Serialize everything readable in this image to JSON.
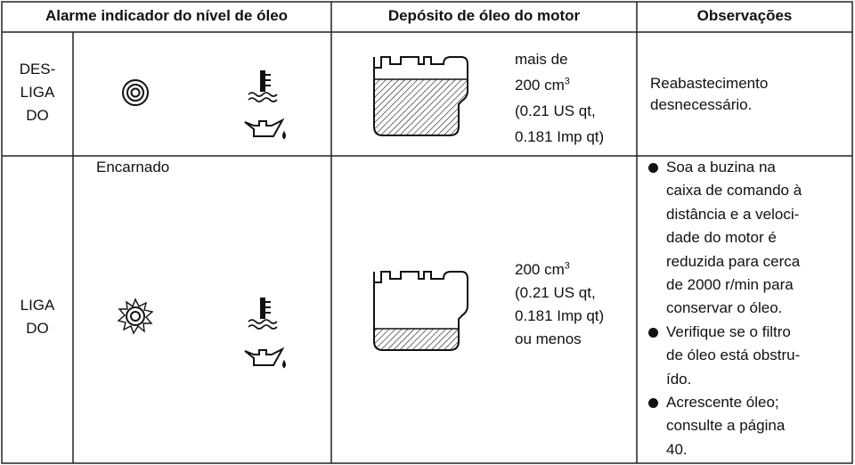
{
  "header": {
    "alarm": "Alarme indicador do nível de óleo",
    "tank": "Depósito de óleo do motor",
    "notes": "Observações"
  },
  "rows": [
    {
      "state": [
        "DES-",
        "LIGA",
        "DO"
      ],
      "amount": {
        "before": "mais de",
        "base": "200 cm",
        "exponent": "3",
        "after": [
          "(0.21 US qt,",
          "0.181 Imp qt)"
        ]
      },
      "notes": [
        "Reabastecimento",
        "desnecessário."
      ]
    },
    {
      "color": "Encarnado",
      "state": [
        "LIGA",
        "DO"
      ],
      "amount": {
        "base": "200 cm",
        "exponent": "3",
        "after": [
          "(0.21 US qt,",
          "0.181 Imp qt)",
          "ou menos"
        ]
      },
      "bullets": [
        [
          "Soa a buzina na",
          "caixa de comando à",
          "distância e a veloci-",
          "dade do motor é",
          "reduzida para cerca",
          "de 2000 r/min para",
          "conservar o óleo."
        ],
        [
          "Verifique se o filtro",
          "de óleo está obstru-",
          "ído."
        ],
        [
          "Acrescente óleo;",
          "consulte a página",
          "40."
        ]
      ]
    }
  ]
}
